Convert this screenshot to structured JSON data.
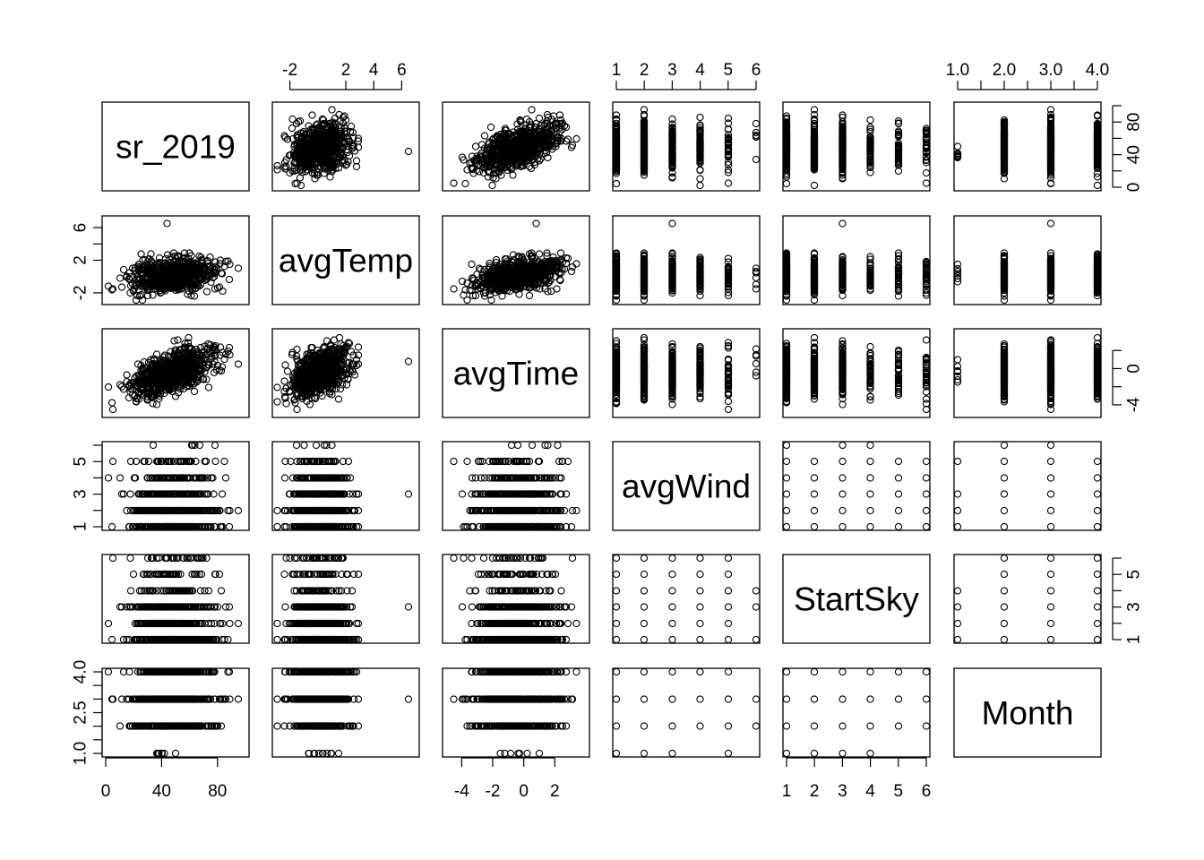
{
  "chart_data": {
    "type": "scatter",
    "kind": "pairs",
    "variables": [
      {
        "name": "sr_2019",
        "range": [
          0,
          100
        ],
        "ticks": [
          0,
          40,
          80
        ],
        "right_ticks": [
          0,
          20,
          40,
          60,
          80,
          100
        ],
        "right_labels": [
          "0",
          "40",
          "80"
        ]
      },
      {
        "name": "avgTemp",
        "range": [
          -3,
          7
        ],
        "ticks": [
          -2,
          2,
          4,
          6
        ]
      },
      {
        "name": "avgTime",
        "range": [
          -5,
          4
        ],
        "ticks": [
          -4,
          -2,
          0,
          2
        ]
      },
      {
        "name": "avgWind",
        "range": [
          1,
          6
        ],
        "ticks": [
          1,
          2,
          3,
          4,
          5,
          6
        ],
        "tick_labels": [
          "1",
          "2",
          "3",
          "4",
          "5",
          "6"
        ]
      },
      {
        "name": "StartSky",
        "range": [
          1,
          6
        ],
        "ticks": [
          1,
          2,
          3,
          4,
          5,
          6
        ],
        "tick_labels": [
          "1",
          "2",
          "3",
          "4",
          "5",
          "6"
        ],
        "right_ticks": [
          1,
          2,
          3,
          4,
          5,
          6
        ],
        "right_labels": [
          "1",
          "3",
          "5"
        ]
      },
      {
        "name": "Month",
        "range": [
          1,
          4
        ],
        "ticks": [
          1.0,
          1.5,
          2.0,
          2.5,
          3.0,
          3.5,
          4.0
        ],
        "tick_labels": [
          "1.0",
          "2.0",
          "3.0",
          "4.0"
        ],
        "left_labels": [
          "1.0",
          "2.5",
          "4.0"
        ]
      }
    ],
    "axis_labels": {
      "top": [
        {
          "var": 1,
          "labels": [
            "-2",
            "2",
            "4",
            "6"
          ]
        },
        {
          "var": 3,
          "labels": [
            "1",
            "2",
            "3",
            "4",
            "5",
            "6"
          ]
        },
        {
          "var": 5,
          "labels": [
            "1.0",
            "2.0",
            "3.0",
            "4.0"
          ]
        }
      ],
      "bottom": [
        {
          "var": 0,
          "labels": [
            "0",
            "40",
            "80"
          ]
        },
        {
          "var": 2,
          "labels": [
            "-4",
            "-2",
            "0",
            "2"
          ]
        },
        {
          "var": 4,
          "labels": [
            "1",
            "2",
            "3",
            "4",
            "5",
            "6"
          ]
        }
      ],
      "left": [
        {
          "var": 1,
          "labels": [
            "-2",
            "2",
            "6"
          ]
        },
        {
          "var": 3,
          "labels": [
            "1",
            "3",
            "5"
          ]
        },
        {
          "var": 5,
          "labels": [
            "1.0",
            "2.5",
            "4.0"
          ]
        }
      ],
      "right": [
        {
          "var": 0,
          "labels": [
            "0",
            "40",
            "80"
          ]
        },
        {
          "var": 2,
          "labels": [
            "-4",
            "0"
          ]
        },
        {
          "var": 4,
          "labels": [
            "1",
            "3",
            "5"
          ]
        }
      ]
    },
    "marker": "open-circle",
    "sample_size": 700,
    "grid": false,
    "legend": "none"
  }
}
